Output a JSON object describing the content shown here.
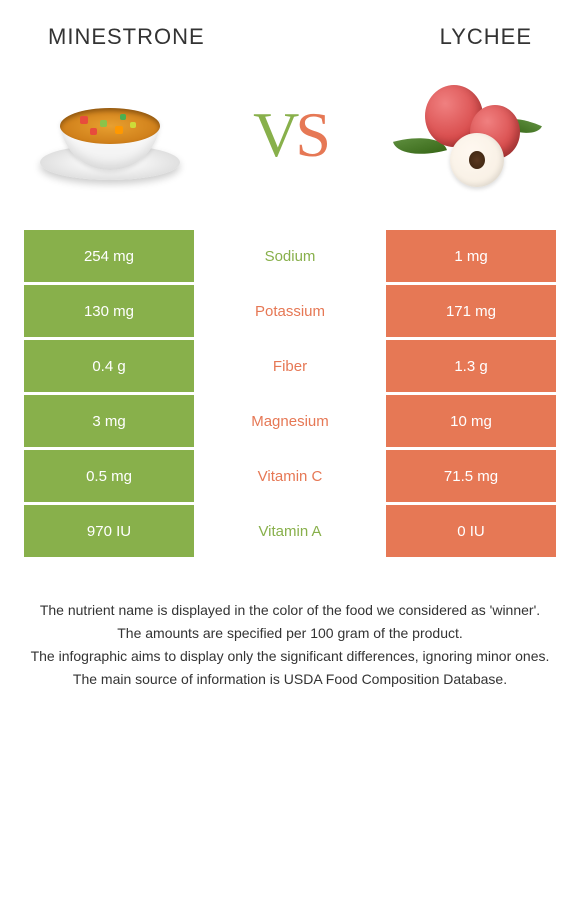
{
  "colors": {
    "left": "#88b04b",
    "right": "#e67855",
    "mid_bg": "#ffffff"
  },
  "food_left": {
    "name": "MINESTRONE"
  },
  "food_right": {
    "name": "LYCHEE"
  },
  "vs": {
    "v": "V",
    "s": "S"
  },
  "rows": [
    {
      "nutrient": "Sodium",
      "left": "254 mg",
      "right": "1 mg",
      "winner": "left"
    },
    {
      "nutrient": "Potassium",
      "left": "130 mg",
      "right": "171 mg",
      "winner": "right"
    },
    {
      "nutrient": "Fiber",
      "left": "0.4 g",
      "right": "1.3 g",
      "winner": "right"
    },
    {
      "nutrient": "Magnesium",
      "left": "3 mg",
      "right": "10 mg",
      "winner": "right"
    },
    {
      "nutrient": "Vitamin C",
      "left": "0.5 mg",
      "right": "71.5 mg",
      "winner": "right"
    },
    {
      "nutrient": "Vitamin A",
      "left": "970 IU",
      "right": "0 IU",
      "winner": "left"
    }
  ],
  "footer": {
    "l1": "The nutrient name is displayed in the color of the food we considered as 'winner'.",
    "l2": "The amounts are specified per 100 gram of the product.",
    "l3": "The infographic aims to display only the significant differences, ignoring minor ones.",
    "l4": "The main source of information is USDA Food Composition Database."
  }
}
